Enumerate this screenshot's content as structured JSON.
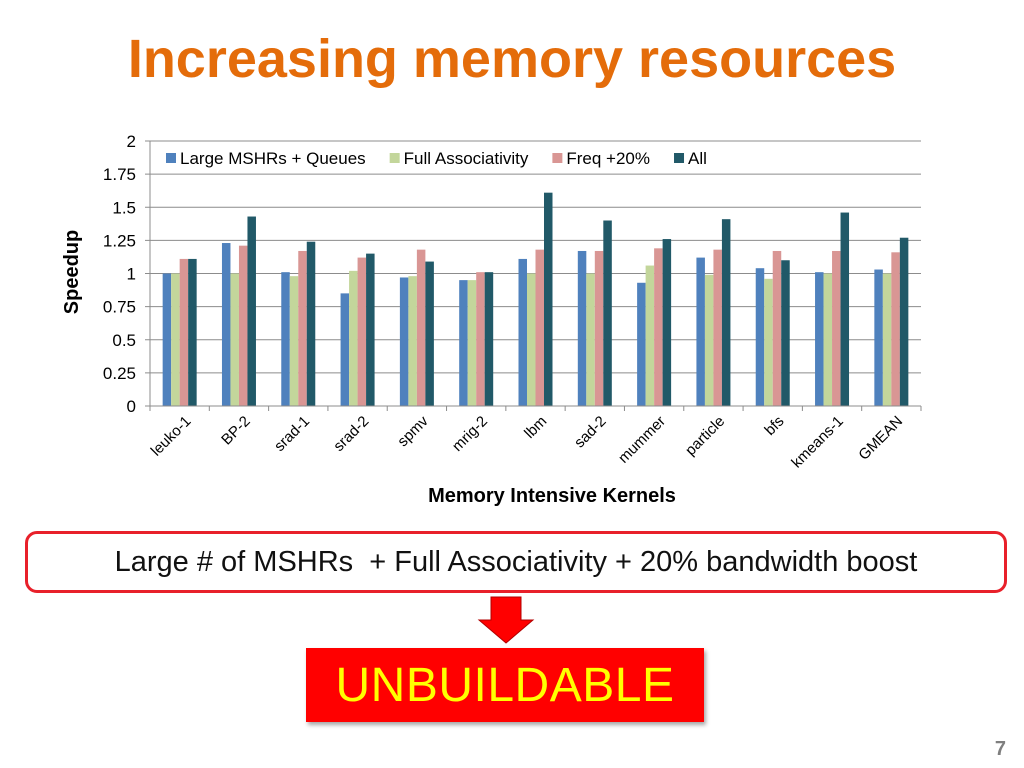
{
  "slide": {
    "title": "Increasing memory resources",
    "callout": "Large # of MSHRs  + Full Associativity + 20% bandwidth boost",
    "verdict": "UNBUILDABLE",
    "page_number": "7"
  },
  "chart_data": {
    "type": "bar",
    "title": "",
    "xlabel": "Memory Intensive Kernels",
    "ylabel": "Speedup",
    "ylim": [
      0,
      2
    ],
    "yticks": [
      "0",
      "0.25",
      "0.5",
      "0.75",
      "1",
      "1.25",
      "1.5",
      "1.75",
      "2"
    ],
    "grid": true,
    "legend_position": "top",
    "categories": [
      "leuko-1",
      "BP-2",
      "srad-1",
      "srad-2",
      "spmv",
      "mrig-2",
      "lbm",
      "sad-2",
      "mummer",
      "particle",
      "bfs",
      "kmeans-1",
      "GMEAN"
    ],
    "series": [
      {
        "name": "Large MSHRs + Queues",
        "color": "#4F81BD",
        "values": [
          1.0,
          1.23,
          1.01,
          0.85,
          0.97,
          0.95,
          1.11,
          1.17,
          0.93,
          1.12,
          1.04,
          1.01,
          1.03
        ]
      },
      {
        "name": "Full Associativity",
        "color": "#C3D69B",
        "values": [
          1.0,
          1.0,
          0.98,
          1.02,
          0.98,
          0.95,
          1.0,
          1.0,
          1.06,
          0.99,
          0.96,
          1.0,
          1.0
        ]
      },
      {
        "name": "Freq +20%",
        "color": "#D99694",
        "values": [
          1.11,
          1.21,
          1.17,
          1.12,
          1.18,
          1.01,
          1.18,
          1.17,
          1.19,
          1.18,
          1.17,
          1.17,
          1.16
        ]
      },
      {
        "name": "All",
        "color": "#215968",
        "values": [
          1.11,
          1.43,
          1.24,
          1.15,
          1.09,
          1.01,
          1.61,
          1.4,
          1.26,
          1.41,
          1.1,
          1.46,
          1.27
        ]
      }
    ]
  }
}
